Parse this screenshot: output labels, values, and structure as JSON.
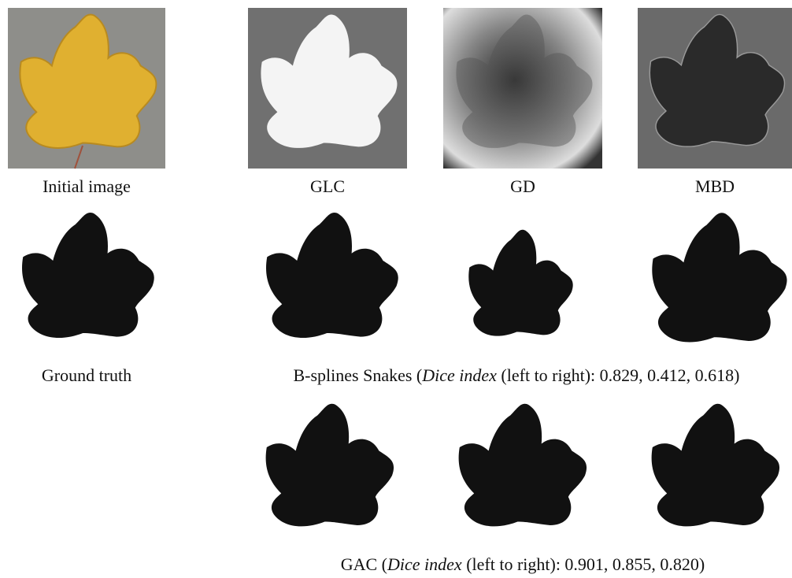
{
  "panels": [
    "Initial image",
    "GLC",
    "GD",
    "MBD"
  ],
  "ground_truth": "Ground truth",
  "captions": [
    {
      "prefix": "B-splines Snakes (",
      "emph": "Dice index",
      "rest": " (left to right): 0.829, 0.412, 0.618)"
    },
    {
      "prefix": "GAC (",
      "emph": "Dice index",
      "rest": " (left to right): 0.901, 0.855, 0.820)"
    }
  ]
}
